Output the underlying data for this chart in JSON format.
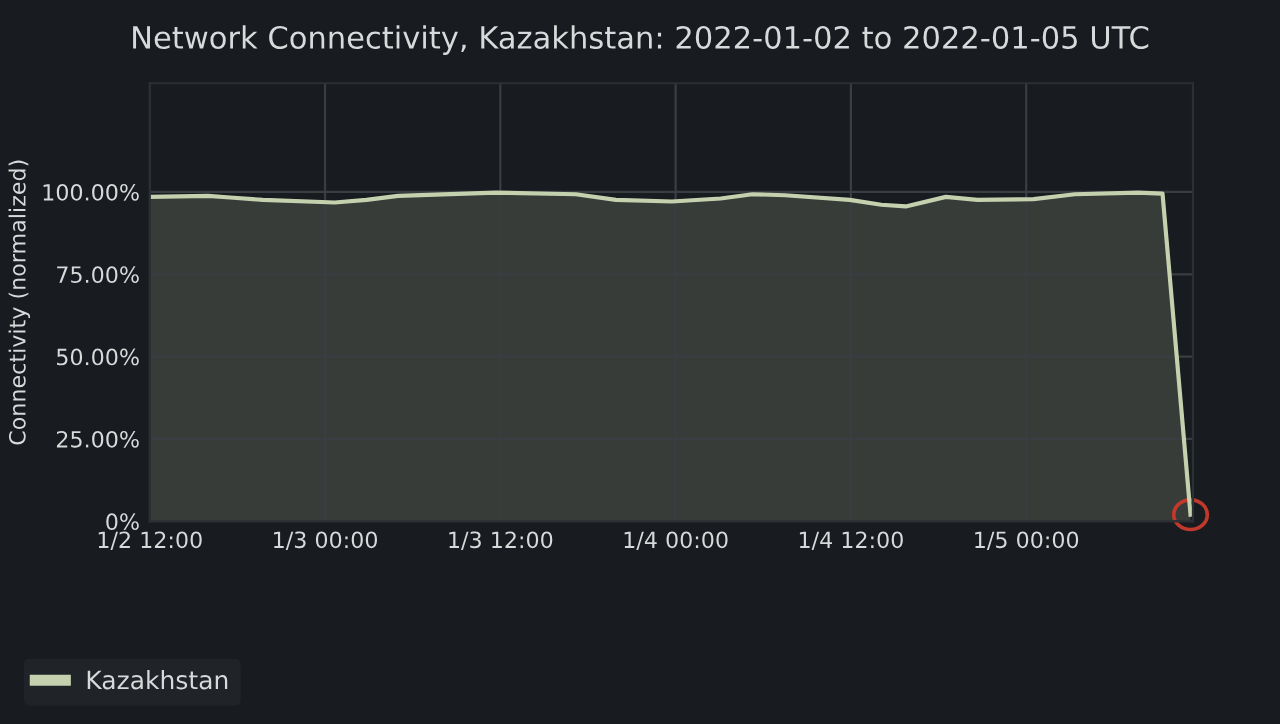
{
  "chart_data": {
    "type": "area",
    "title": "Network Connectivity, Kazakhstan: 2022-01-02 to 2022-01-05 UTC",
    "ylabel": "Connectivity (normalized)",
    "x": [
      "2022-01-02T12:00",
      "2022-01-02T16:00",
      "2022-01-02T17:30",
      "2022-01-02T19:45",
      "2022-01-03T00:40",
      "2022-01-03T02:50",
      "2022-01-03T05:00",
      "2022-01-03T11:40",
      "2022-01-03T17:10",
      "2022-01-03T19:55",
      "2022-01-03T23:45",
      "2022-01-04T03:05",
      "2022-01-04T05:15",
      "2022-01-04T07:30",
      "2022-01-04T11:55",
      "2022-01-04T14:05",
      "2022-01-04T15:45",
      "2022-01-04T18:30",
      "2022-01-04T20:40",
      "2022-01-05T00:30",
      "2022-01-05T03:20",
      "2022-01-05T07:40",
      "2022-01-05T09:20",
      "2022-01-05T11:15"
    ],
    "series": [
      {
        "name": "Kazakhstan",
        "color": "#c5d1ae",
        "values": [
          98.5,
          98.8,
          98.3,
          97.6,
          96.8,
          97.6,
          98.8,
          99.8,
          99.3,
          97.6,
          97.1,
          98,
          99.3,
          99,
          97.6,
          96.1,
          95.6,
          98.5,
          97.6,
          97.8,
          99.3,
          99.8,
          99.5,
          2
        ]
      }
    ],
    "xlim": [
      "2022-01-02T12:00",
      "2022-01-05T11:25"
    ],
    "xticks": [
      {
        "value": "2022-01-02T12:00",
        "label": "1/2 12:00"
      },
      {
        "value": "2022-01-03T00:00",
        "label": "1/3 00:00"
      },
      {
        "value": "2022-01-03T12:00",
        "label": "1/3 12:00"
      },
      {
        "value": "2022-01-04T00:00",
        "label": "1/4 00:00"
      },
      {
        "value": "2022-01-04T12:00",
        "label": "1/4 12:00"
      },
      {
        "value": "2022-01-05T00:00",
        "label": "1/5 00:00"
      }
    ],
    "ylim": [
      0,
      133
    ],
    "yticks": [
      {
        "value": 0,
        "label": "0%"
      },
      {
        "value": 25,
        "label": "25.00%"
      },
      {
        "value": 50,
        "label": "50.00%"
      },
      {
        "value": 75,
        "label": "75.00%"
      },
      {
        "value": 100,
        "label": "100.00%"
      }
    ],
    "grid": true,
    "legend": "bottom"
  }
}
